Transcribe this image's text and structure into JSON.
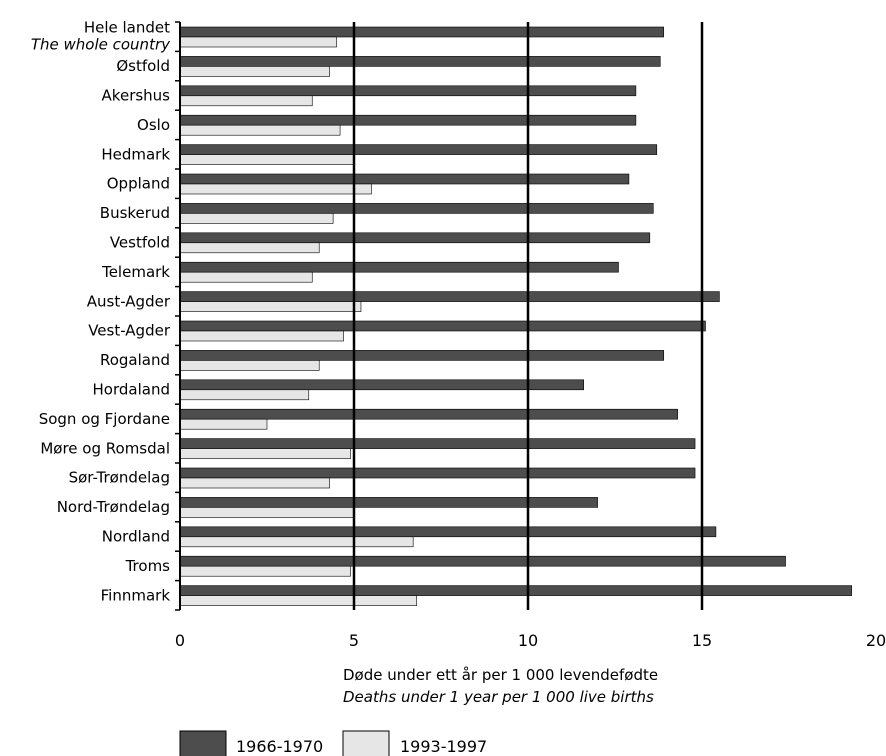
{
  "chart_data": {
    "type": "bar",
    "orientation": "horizontal",
    "categories": [
      [
        "Hele landet",
        "The whole country"
      ],
      [
        "Østfold"
      ],
      [
        "Akershus"
      ],
      [
        "Oslo"
      ],
      [
        "Hedmark"
      ],
      [
        "Oppland"
      ],
      [
        "Buskerud"
      ],
      [
        "Vestfold"
      ],
      [
        "Telemark"
      ],
      [
        "Aust-Agder"
      ],
      [
        "Vest-Agder"
      ],
      [
        "Rogaland"
      ],
      [
        "Hordaland"
      ],
      [
        "Sogn og Fjordane"
      ],
      [
        "Møre og Romsdal"
      ],
      [
        "Sør-Trøndelag"
      ],
      [
        "Nord-Trøndelag"
      ],
      [
        "Nordland"
      ],
      [
        "Troms"
      ],
      [
        "Finnmark"
      ]
    ],
    "series": [
      {
        "name": "1966-1970",
        "color": "#4d4d4d",
        "values": [
          13.9,
          13.8,
          13.1,
          13.1,
          13.7,
          12.9,
          13.6,
          13.5,
          12.6,
          15.5,
          15.1,
          13.9,
          11.6,
          14.3,
          14.8,
          14.8,
          12.0,
          15.4,
          17.4,
          19.3
        ]
      },
      {
        "name": "1993-1997",
        "color": "#e6e6e6",
        "values": [
          4.5,
          4.3,
          3.8,
          4.6,
          5.0,
          5.5,
          4.4,
          4.0,
          3.8,
          5.2,
          4.7,
          4.0,
          3.7,
          2.5,
          4.9,
          4.3,
          5.0,
          6.7,
          4.9,
          6.8
        ]
      }
    ],
    "xlim": [
      0,
      20
    ],
    "xticks": [
      "0",
      "5",
      "10",
      "15",
      "20"
    ],
    "xlabel": "Døde under ett år per 1 000 levendefødte",
    "xlabel_en": "Deaths under 1 year per 1 000 live births",
    "grid": "vertical",
    "legend_position": "bottom-left"
  }
}
